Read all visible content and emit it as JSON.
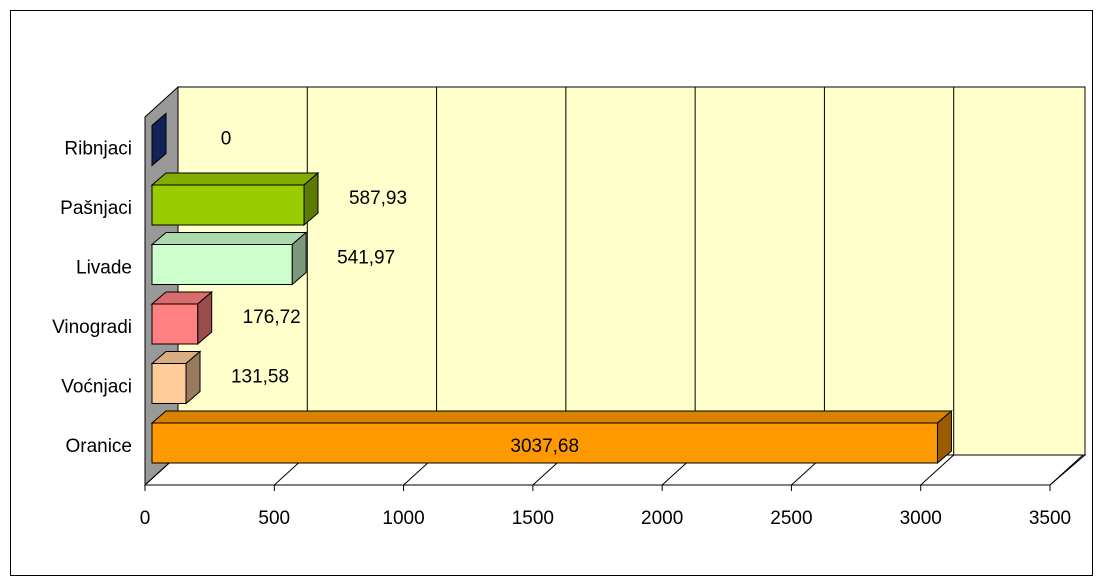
{
  "chart_data": {
    "type": "bar3d-horizontal",
    "categories": [
      "Oranice",
      "Voćnjaci",
      "Vinogradi",
      "Livade",
      "Pašnjaci",
      "Ribnjaci"
    ],
    "values": [
      3037.68,
      131.58,
      176.72,
      541.97,
      587.93,
      0
    ],
    "value_labels": [
      "3037,68",
      "131,58",
      "176,72",
      "541,97",
      "587,93",
      "0"
    ],
    "colors": [
      "#ff9900",
      "#ffcc99",
      "#ff8080",
      "#ccffcc",
      "#99cc00",
      "#1f3a93"
    ],
    "xlim": [
      0,
      3500
    ],
    "xticks": [
      0,
      500,
      1000,
      1500,
      2000,
      2500,
      3000,
      3500
    ],
    "grid": true
  }
}
